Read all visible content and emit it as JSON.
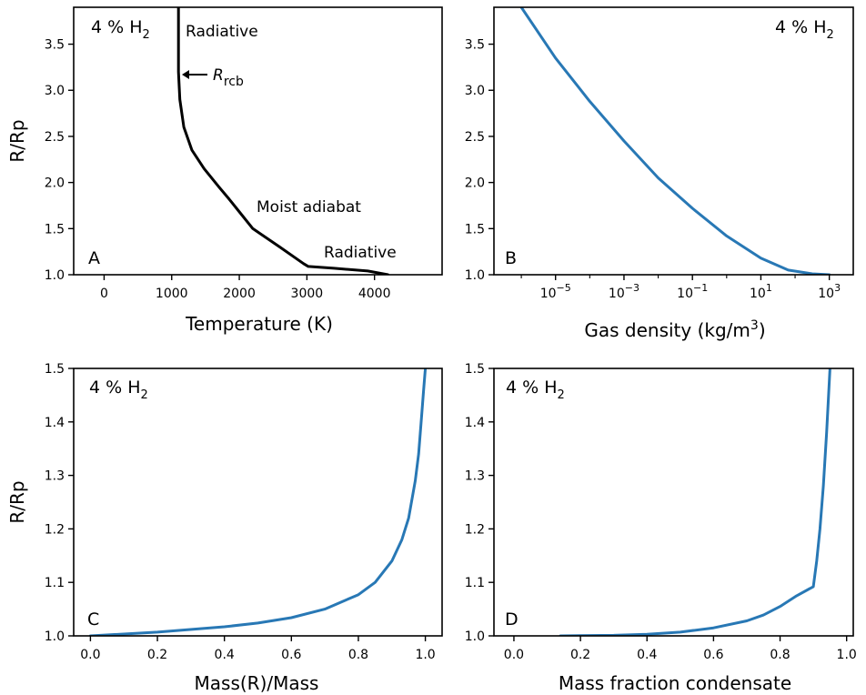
{
  "chart_data": [
    {
      "type": "line",
      "panel_letter": "A",
      "annotation": "4 % H",
      "annotation_sub": "2",
      "xlabel": "Temperature (K)",
      "ylabel": "R/Rp",
      "xlim": [
        -450,
        5000
      ],
      "ylim": [
        1.0,
        3.9
      ],
      "xticks": [
        0,
        1000,
        2000,
        3000,
        4000
      ],
      "yticks": [
        1.0,
        1.5,
        2.0,
        2.5,
        3.0,
        3.5
      ],
      "color": "#000000",
      "labels": [
        {
          "text": "Radiative"
        },
        {
          "text": "Moist adiabat"
        },
        {
          "text": "Radiative"
        }
      ],
      "rcb_label": "R",
      "rcb_sub": "rcb",
      "series": [
        {
          "x": [
            1100,
            1100,
            1100,
            1120,
            1180,
            1300,
            1480,
            1700,
            1850,
            1980,
            2200,
            2600,
            2950,
            3020,
            3400,
            3900,
            4200
          ],
          "y": [
            3.9,
            3.5,
            3.2,
            2.9,
            2.6,
            2.35,
            2.15,
            1.95,
            1.82,
            1.7,
            1.5,
            1.3,
            1.12,
            1.09,
            1.07,
            1.04,
            1.0
          ]
        }
      ]
    },
    {
      "type": "line",
      "panel_letter": "B",
      "annotation": "4 % H",
      "annotation_sub": "2",
      "xlabel": "Gas density (kg/m",
      "xlabel_sup": "3",
      "xlabel_end": ")",
      "xscale": "log",
      "xlim_log10": [
        -6.8,
        3.7
      ],
      "ylim": [
        1.0,
        3.9
      ],
      "xticks_log10": [
        -5,
        -3,
        -1,
        1,
        3
      ],
      "yticks": [
        1.0,
        1.5,
        2.0,
        2.5,
        3.0,
        3.5
      ],
      "color": "#2878b5",
      "series": [
        {
          "x_log10": [
            -6.0,
            -5.0,
            -4.0,
            -3.0,
            -2.0,
            -1.0,
            0.0,
            1.0,
            1.8,
            2.5,
            3.0
          ],
          "y": [
            3.9,
            3.35,
            2.88,
            2.45,
            2.05,
            1.72,
            1.42,
            1.18,
            1.05,
            1.01,
            1.0
          ]
        }
      ]
    },
    {
      "type": "line",
      "panel_letter": "C",
      "annotation": "4 % H",
      "annotation_sub": "2",
      "xlabel": "Mass(R)/Mass",
      "ylabel": "R/Rp",
      "xlim": [
        -0.05,
        1.05
      ],
      "ylim": [
        1.0,
        1.5
      ],
      "xticks": [
        0.0,
        0.2,
        0.4,
        0.6,
        0.8,
        1.0
      ],
      "yticks": [
        1.0,
        1.1,
        1.2,
        1.3,
        1.4,
        1.5
      ],
      "color": "#2878b5",
      "series": [
        {
          "x": [
            0.0,
            0.2,
            0.4,
            0.5,
            0.6,
            0.7,
            0.8,
            0.85,
            0.9,
            0.93,
            0.95,
            0.97,
            0.98,
            0.99,
            0.995,
            1.0
          ],
          "y": [
            1.0,
            1.007,
            1.017,
            1.024,
            1.034,
            1.05,
            1.077,
            1.1,
            1.14,
            1.18,
            1.22,
            1.29,
            1.34,
            1.42,
            1.46,
            1.5
          ]
        }
      ]
    },
    {
      "type": "line",
      "panel_letter": "D",
      "annotation": "4 % H",
      "annotation_sub": "2",
      "xlabel": "Mass fraction condensate",
      "xlim": [
        -0.06,
        1.02
      ],
      "ylim": [
        1.0,
        1.5
      ],
      "xticks": [
        0.0,
        0.2,
        0.4,
        0.6,
        0.8,
        1.0
      ],
      "yticks": [
        1.0,
        1.1,
        1.2,
        1.3,
        1.4,
        1.5
      ],
      "color": "#2878b5",
      "series": [
        {
          "x": [
            0.14,
            0.3,
            0.4,
            0.5,
            0.6,
            0.7,
            0.75,
            0.8,
            0.85,
            0.9,
            0.91,
            0.92,
            0.93,
            0.94,
            0.95
          ],
          "y": [
            1.0,
            1.001,
            1.003,
            1.007,
            1.015,
            1.028,
            1.039,
            1.055,
            1.075,
            1.092,
            1.14,
            1.2,
            1.28,
            1.38,
            1.5
          ]
        }
      ]
    }
  ]
}
